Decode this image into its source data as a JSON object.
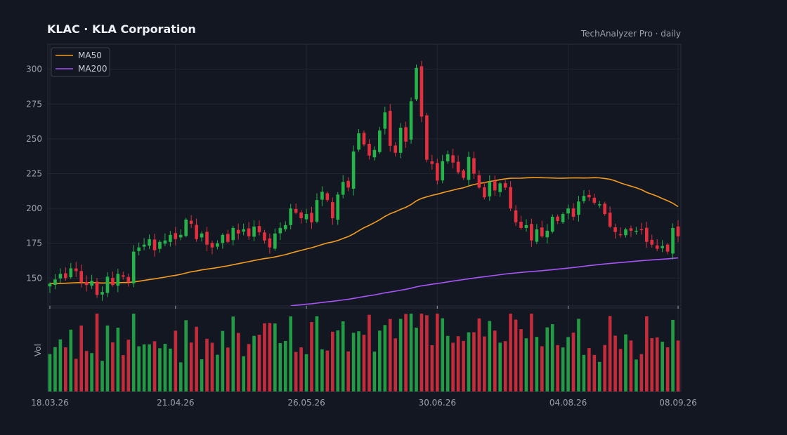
{
  "header": {
    "title": "KLAC  ·  KLA Corporation",
    "source": "TechAnalyzer Pro · daily"
  },
  "chart_data": {
    "type": "candlestick",
    "x_ticks": [
      "18.03.26",
      "21.04.26",
      "26.05.26",
      "30.06.26",
      "04.08.26",
      "08.09.26"
    ],
    "y_ticks": [
      150,
      175,
      200,
      225,
      250,
      275,
      300
    ],
    "ylim": [
      130,
      318
    ],
    "volume_label": "Vol",
    "legend": [
      {
        "name": "MA50",
        "color": "#f39c21"
      },
      {
        "name": "MA200",
        "color": "#a855f7"
      }
    ],
    "colors": {
      "up": "#26b34a",
      "down": "#e3303f",
      "grid": "#222633",
      "axis": "#363a45"
    },
    "close": [
      146,
      149,
      153,
      150,
      157,
      155,
      147,
      145,
      148,
      138,
      140,
      151,
      145,
      153,
      151,
      147,
      169,
      172,
      174,
      178,
      170,
      176,
      177,
      181,
      178,
      181,
      192,
      189,
      178,
      182,
      174,
      172,
      175,
      181,
      176,
      186,
      182,
      185,
      180,
      187,
      183,
      177,
      172,
      182,
      186,
      188,
      200,
      197,
      193,
      196,
      190,
      206,
      212,
      206,
      193,
      210,
      219,
      215,
      241,
      254,
      246,
      238,
      242,
      256,
      269,
      245,
      240,
      258,
      248,
      277,
      301,
      266,
      235,
      232,
      220,
      234,
      239,
      233,
      226,
      222,
      237,
      225,
      215,
      208,
      219,
      213,
      218,
      215,
      200,
      190,
      186,
      188,
      177,
      185,
      180,
      184,
      194,
      191,
      196,
      200,
      194,
      205,
      209,
      208,
      204,
      203,
      196,
      187,
      183,
      181,
      185,
      184,
      184,
      185,
      176,
      174,
      171,
      173,
      169,
      186,
      180
    ]
  }
}
